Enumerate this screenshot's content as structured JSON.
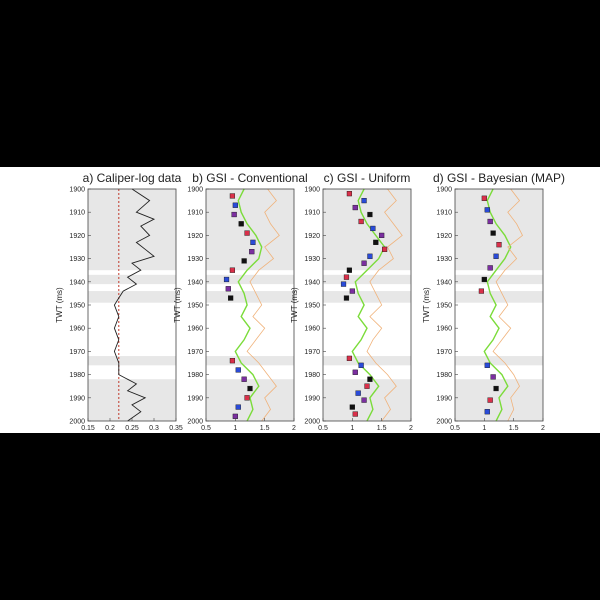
{
  "figure": {
    "background": "#000000",
    "colors": {
      "shade": "#e7e7e7",
      "caliper": "#222222",
      "threshold": "#c0392b",
      "gsi_trace": "#f0b27a",
      "gsi_line": "#7bdc3a",
      "marker_red": "#d9304a",
      "marker_blue": "#2a4bd8",
      "marker_purple": "#7b2fa0",
      "marker_black": "#111111"
    }
  },
  "chart_data": [
    {
      "type": "line",
      "panel": "a",
      "title": "a) Caliper-log data",
      "ylabel": "TWT (ms)",
      "xlabel": "",
      "xlim": [
        0.15,
        0.35
      ],
      "xticks": [
        "0.15",
        "0.2",
        "0.25",
        "0.3",
        "0.35"
      ],
      "ylim": [
        1900,
        2000
      ],
      "yticks": [
        "1900",
        "1910",
        "1920",
        "1930",
        "1940",
        "1950",
        "1960",
        "1970",
        "1980",
        "1990",
        "2000"
      ],
      "shaded_intervals": [
        [
          1900,
          1935
        ],
        [
          1937,
          1941
        ],
        [
          1944,
          1949
        ],
        [
          1972,
          1976
        ],
        [
          1982,
          2000
        ]
      ],
      "threshold_x": 0.22,
      "series": [
        {
          "y": [
            1900,
            1905,
            1910,
            1913,
            1916,
            1920,
            1923,
            1926,
            1929,
            1932,
            1935,
            1938,
            1941,
            1944,
            1947,
            1950,
            1955,
            1960,
            1965,
            1970,
            1975,
            1980,
            1984,
            1987,
            1990,
            1993,
            1996,
            2000
          ],
          "x": [
            0.25,
            0.29,
            0.26,
            0.3,
            0.27,
            0.29,
            0.26,
            0.28,
            0.3,
            0.25,
            0.27,
            0.24,
            0.26,
            0.23,
            0.22,
            0.21,
            0.22,
            0.21,
            0.22,
            0.21,
            0.22,
            0.22,
            0.26,
            0.24,
            0.28,
            0.25,
            0.27,
            0.24
          ]
        }
      ]
    },
    {
      "type": "line",
      "panel": "b",
      "title": "b) GSI - Conventional",
      "ylabel": "TWT (ms)",
      "xlabel": "",
      "xlim": [
        0.5,
        2
      ],
      "xticks": [
        "0.5",
        "1",
        "1.5",
        "2"
      ],
      "ylim": [
        1900,
        2000
      ],
      "yticks": [
        "1900",
        "1910",
        "1920",
        "1930",
        "1940",
        "1950",
        "1960",
        "1970",
        "1980",
        "1990",
        "2000"
      ],
      "shaded_intervals": [
        [
          1900,
          1935
        ],
        [
          1937,
          1941
        ],
        [
          1944,
          1949
        ],
        [
          1972,
          1976
        ],
        [
          1982,
          2000
        ]
      ],
      "series": [
        {
          "y": [
            1900,
            1905,
            1910,
            1915,
            1920,
            1925,
            1930,
            1935,
            1940,
            1945,
            1950,
            1955,
            1960,
            1965,
            1970,
            1975,
            1980,
            1985,
            1990,
            1995,
            2000
          ],
          "x": [
            1.15,
            1.05,
            1.1,
            1.2,
            1.35,
            1.45,
            1.4,
            1.2,
            1.05,
            1.15,
            1.2,
            1.1,
            1.25,
            1.15,
            1.0,
            1.1,
            1.3,
            1.4,
            1.25,
            1.3,
            1.2
          ]
        },
        {
          "y": [
            1900,
            1905,
            1910,
            1915,
            1920,
            1925,
            1930,
            1935,
            1940,
            1945,
            1950,
            1955,
            1960,
            1965,
            1970,
            1975,
            1980,
            1985,
            1990,
            1995,
            2000
          ],
          "x": [
            1.55,
            1.7,
            1.5,
            1.6,
            1.75,
            1.5,
            1.65,
            1.4,
            1.25,
            1.35,
            1.45,
            1.3,
            1.5,
            1.35,
            1.2,
            1.4,
            1.55,
            1.7,
            1.5,
            1.6,
            1.45
          ]
        }
      ],
      "markers": {
        "y": [
          1903,
          1907,
          1911,
          1915,
          1919,
          1923,
          1927,
          1931,
          1935,
          1939,
          1943,
          1947,
          1974,
          1978,
          1982,
          1986,
          1990,
          1994,
          1998
        ],
        "x": [
          0.95,
          1.0,
          0.98,
          1.1,
          1.2,
          1.3,
          1.28,
          1.15,
          0.95,
          0.85,
          0.88,
          0.92,
          0.95,
          1.05,
          1.15,
          1.25,
          1.2,
          1.05,
          1.0
        ]
      }
    },
    {
      "type": "line",
      "panel": "c",
      "title": "c) GSI - Uniform",
      "ylabel": "TWT (ms)",
      "xlabel": "",
      "xlim": [
        0.5,
        2
      ],
      "xticks": [
        "0.5",
        "1",
        "1.5",
        "2"
      ],
      "ylim": [
        1900,
        2000
      ],
      "yticks": [
        "1900",
        "1910",
        "1920",
        "1930",
        "1940",
        "1950",
        "1960",
        "1970",
        "1980",
        "1990",
        "2000"
      ],
      "shaded_intervals": [
        [
          1900,
          1935
        ],
        [
          1937,
          1941
        ],
        [
          1944,
          1949
        ],
        [
          1972,
          1976
        ],
        [
          1982,
          2000
        ]
      ],
      "series": [
        {
          "y": [
            1900,
            1905,
            1910,
            1915,
            1920,
            1925,
            1930,
            1935,
            1940,
            1945,
            1950,
            1955,
            1960,
            1965,
            1970,
            1975,
            1980,
            1985,
            1990,
            1995,
            2000
          ],
          "x": [
            1.2,
            1.1,
            1.15,
            1.25,
            1.4,
            1.55,
            1.45,
            1.25,
            1.05,
            1.1,
            1.2,
            1.1,
            1.25,
            1.15,
            1.0,
            1.1,
            1.3,
            1.45,
            1.3,
            1.35,
            1.25
          ]
        },
        {
          "y": [
            1900,
            1905,
            1910,
            1915,
            1920,
            1925,
            1930,
            1935,
            1940,
            1945,
            1950,
            1955,
            1960,
            1965,
            1970,
            1975,
            1980,
            1985,
            1990,
            1995,
            2000
          ],
          "x": [
            1.6,
            1.75,
            1.55,
            1.7,
            1.85,
            1.6,
            1.7,
            1.45,
            1.3,
            1.4,
            1.5,
            1.3,
            1.5,
            1.35,
            1.25,
            1.4,
            1.6,
            1.75,
            1.55,
            1.65,
            1.5
          ]
        }
      ],
      "markers": {
        "y": [
          1902,
          1905,
          1908,
          1911,
          1914,
          1917,
          1920,
          1923,
          1926,
          1929,
          1932,
          1935,
          1938,
          1941,
          1944,
          1947,
          1973,
          1976,
          1979,
          1982,
          1985,
          1988,
          1991,
          1994,
          1997
        ],
        "x": [
          0.95,
          1.2,
          1.05,
          1.3,
          1.15,
          1.35,
          1.5,
          1.4,
          1.55,
          1.3,
          1.2,
          0.95,
          0.9,
          0.85,
          1.0,
          0.9,
          0.95,
          1.15,
          1.05,
          1.3,
          1.25,
          1.1,
          1.2,
          1.0,
          1.05
        ]
      }
    },
    {
      "type": "line",
      "panel": "d",
      "title": "d) GSI - Bayesian (MAP)",
      "ylabel": "TWT (ms)",
      "xlabel": "",
      "xlim": [
        0.5,
        2
      ],
      "xticks": [
        "0.5",
        "1",
        "1.5",
        "2"
      ],
      "ylim": [
        1900,
        2000
      ],
      "yticks": [
        "1900",
        "1910",
        "1920",
        "1930",
        "1940",
        "1950",
        "1960",
        "1970",
        "1980",
        "1990",
        "2000"
      ],
      "shaded_intervals": [
        [
          1900,
          1935
        ],
        [
          1937,
          1941
        ],
        [
          1944,
          1949
        ],
        [
          1972,
          1976
        ],
        [
          1982,
          2000
        ]
      ],
      "series": [
        {
          "y": [
            1900,
            1905,
            1910,
            1915,
            1920,
            1925,
            1930,
            1935,
            1940,
            1945,
            1950,
            1955,
            1960,
            1965,
            1970,
            1975,
            1980,
            1985,
            1990,
            1995,
            2000
          ],
          "x": [
            1.15,
            1.05,
            1.1,
            1.2,
            1.35,
            1.45,
            1.35,
            1.2,
            1.05,
            1.1,
            1.2,
            1.1,
            1.25,
            1.15,
            1.0,
            1.1,
            1.3,
            1.4,
            1.25,
            1.3,
            1.2
          ]
        },
        {
          "y": [
            1900,
            1905,
            1910,
            1915,
            1920,
            1925,
            1930,
            1935,
            1940,
            1945,
            1950,
            1955,
            1960,
            1965,
            1970,
            1975,
            1980,
            1985,
            1990,
            1995,
            2000
          ],
          "x": [
            1.45,
            1.6,
            1.4,
            1.55,
            1.65,
            1.4,
            1.55,
            1.35,
            1.2,
            1.3,
            1.4,
            1.25,
            1.45,
            1.3,
            1.15,
            1.35,
            1.5,
            1.6,
            1.45,
            1.5,
            1.4
          ]
        }
      ],
      "markers": {
        "y": [
          1904,
          1909,
          1914,
          1919,
          1924,
          1929,
          1934,
          1939,
          1944,
          1976,
          1981,
          1986,
          1991,
          1996
        ],
        "x": [
          1.0,
          1.05,
          1.1,
          1.15,
          1.25,
          1.2,
          1.1,
          1.0,
          0.95,
          1.05,
          1.15,
          1.2,
          1.1,
          1.05
        ]
      }
    }
  ]
}
